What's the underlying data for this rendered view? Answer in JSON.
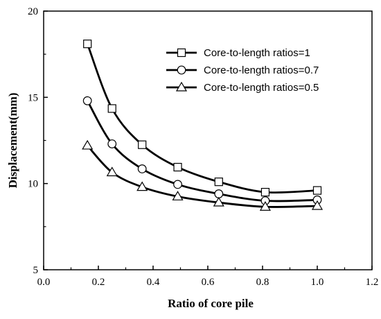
{
  "chart_data": {
    "type": "line",
    "title": "",
    "xlabel": "Ratio of core pile",
    "ylabel": "Displacement(mm)",
    "xlim": [
      0.0,
      1.2
    ],
    "ylim": [
      5,
      20
    ],
    "xticks": [
      "0.0",
      "0.2",
      "0.4",
      "0.6",
      "0.8",
      "1.0",
      "1.2"
    ],
    "yticks": [
      "5",
      "10",
      "15",
      "20"
    ],
    "grid": false,
    "legend_position": "top-right",
    "x": [
      0.16,
      0.25,
      0.36,
      0.49,
      0.64,
      0.81,
      1.0
    ],
    "series": [
      {
        "name": "Core-to-length ratios=1",
        "marker": "square",
        "values": [
          18.1,
          14.35,
          12.25,
          10.95,
          10.1,
          9.5,
          9.6
        ]
      },
      {
        "name": "Core-to-length ratios=0.7",
        "marker": "circle",
        "values": [
          14.8,
          12.3,
          10.85,
          9.95,
          9.4,
          9.0,
          9.05
        ]
      },
      {
        "name": "Core-to-length ratios=0.5",
        "marker": "triangle",
        "values": [
          12.2,
          10.65,
          9.8,
          9.25,
          8.9,
          8.65,
          8.7
        ]
      }
    ],
    "colors": {
      "line": "#000000",
      "marker_fill": "#ffffff"
    }
  }
}
